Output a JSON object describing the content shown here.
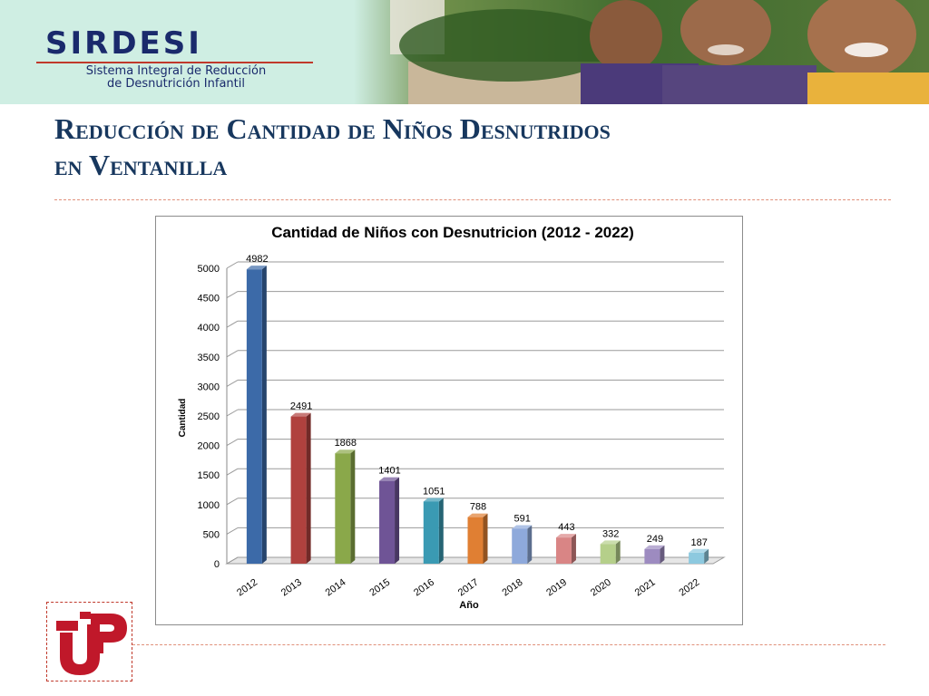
{
  "banner": {
    "brand": "SIRDESI",
    "subtitle_line1": "Sistema Integral de Reducción",
    "subtitle_line2": "de Desnutrición Infantil"
  },
  "slide": {
    "title_line1": "Reducción de Cantidad de Niños Desnutridos",
    "title_line2": "en Ventanilla"
  },
  "colors": {
    "title": "#17375e",
    "brand": "#1a2a6c",
    "accent_rule": "#e0907a",
    "logo_red": "#c0182a"
  },
  "chart_data": {
    "type": "bar",
    "title": "Cantidad de Niños con Desnutricion (2012 - 2022)",
    "xlabel": "Año",
    "ylabel": "Cantidad",
    "categories": [
      "2012",
      "2013",
      "2014",
      "2015",
      "2016",
      "2017",
      "2018",
      "2019",
      "2020",
      "2021",
      "2022"
    ],
    "values": [
      4982,
      2491,
      1868,
      1401,
      1051,
      788,
      591,
      443,
      332,
      249,
      187
    ],
    "ylim": [
      0,
      5000
    ],
    "yticks": [
      0,
      500,
      1000,
      1500,
      2000,
      2500,
      3000,
      3500,
      4000,
      4500,
      5000
    ],
    "grid": true,
    "legend": "none",
    "bar_colors": [
      "#3c6aa8",
      "#b0413e",
      "#8aa84a",
      "#6f5496",
      "#3a9ab3",
      "#e07f33",
      "#8ea9db",
      "#d98585",
      "#b5cf8a",
      "#9d8bc0",
      "#8dc9df"
    ]
  }
}
